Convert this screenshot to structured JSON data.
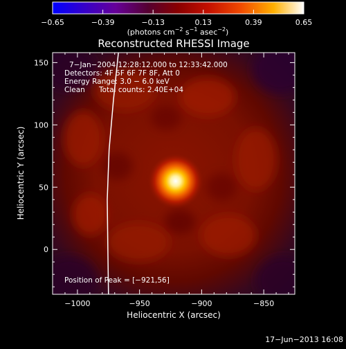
{
  "chart_data": {
    "type": "heatmap",
    "title": "Reconstructed RHESSI Image",
    "xlabel": "Heliocentric X (arcsec)",
    "ylabel": "Heliocentric Y (arcsec)",
    "xlim": [
      -1020,
      -825
    ],
    "ylim": [
      -36,
      158
    ],
    "x_ticks": [
      -1000,
      -950,
      -900,
      -850
    ],
    "x_tick_labels": [
      "−1000",
      "−950",
      "−900",
      "−850"
    ],
    "y_ticks": [
      0,
      50,
      100,
      150
    ],
    "y_tick_labels": [
      "0",
      "50",
      "100",
      "150"
    ],
    "colorbar": {
      "min": -0.65,
      "max": 0.65,
      "ticks": [
        -0.65,
        -0.39,
        -0.13,
        0.13,
        0.39,
        0.65
      ],
      "tick_labels": [
        "−0.65",
        "−0.39",
        "−0.13",
        "0.13",
        "0.39",
        "0.65"
      ],
      "label_main": "(photons cm",
      "label_exp1": "−2",
      "label_mid": " s",
      "label_exp2": "−1",
      "label_end": " asec",
      "label_exp3": "−2",
      "label_close": ")"
    },
    "peak": {
      "x": -921,
      "y": 56
    },
    "limb_line": [
      [
        -975,
        -36
      ],
      [
        -975.5,
        0
      ],
      [
        -976,
        40
      ],
      [
        -974.5,
        80
      ],
      [
        -971,
        120
      ],
      [
        -967,
        158
      ]
    ],
    "annotations": {
      "time_range": "7−Jan−2004 12:28:12.000 to 12:33:42.000",
      "detectors": "Detectors: 4F 5F 6F 7F 8F, Att 0",
      "energy": "Energy Range: 3.0 − 6.0 keV",
      "clean_label": "Clean",
      "total_counts": "Total counts: 2.40E+04",
      "peak_position": "Position of Peak = [−921,56]"
    }
  },
  "footer": {
    "date": "17−Jun−2013 16:08"
  }
}
